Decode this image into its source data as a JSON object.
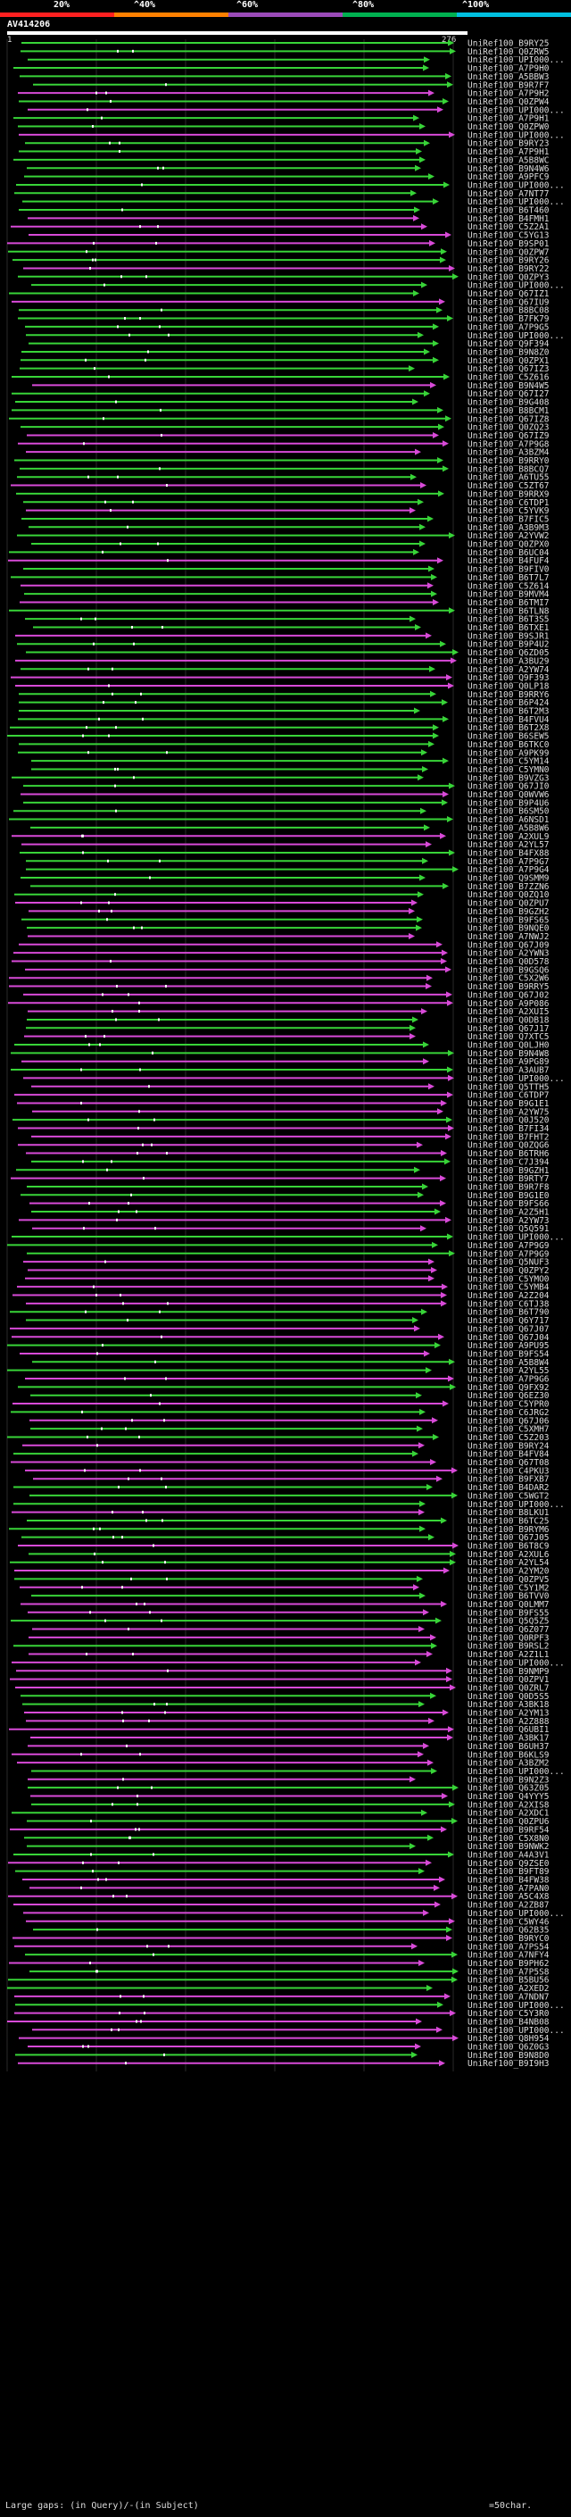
{
  "header": {
    "identity_labels": [
      "20%",
      "^40%",
      "^60%",
      "^80%",
      "^100%"
    ],
    "identity_colors": [
      "#ff2020",
      "#ff8000",
      "#9b4bb8",
      "#00b050",
      "#00c0e0"
    ]
  },
  "query": {
    "title": "AV414206",
    "start": "1",
    "end": "276"
  },
  "colors": {
    "green": "#38d438",
    "magenta": "#d84ad8",
    "background": "#000000",
    "grid": "#2a2a2a"
  },
  "hits": [
    "UniRef100_B9RY25",
    "UniRef100_Q0ZRW5",
    "UniRef100_UPI000...",
    "UniRef100_A7P9H0",
    "UniRef100_A5BBW3",
    "UniRef100_B9R7F7",
    "UniRef100_A7P9H2",
    "UniRef100_Q0ZPW4",
    "UniRef100_UPI000...",
    "UniRef100_A7P9H1",
    "UniRef100_Q0ZPW0",
    "UniRef100_UPI000...",
    "UniRef100_B9RY23",
    "UniRef100_A7P9H1",
    "UniRef100_A5B8WC",
    "UniRef100_B9N4W6",
    "UniRef100_A9PFC9",
    "UniRef100_UPI000...",
    "UniRef100_A7NT77",
    "UniRef100_UPI000...",
    "UniRef100_B6T460",
    "UniRef100_B4FMH1",
    "UniRef100_C5Z2A1",
    "UniRef100_C5YG13",
    "UniRef100_B9SP01",
    "UniRef100_Q0ZPW7",
    "UniRef100_B9RY26",
    "UniRef100_B9RY22",
    "UniRef100_Q0ZPY3",
    "UniRef100_UPI000...",
    "UniRef100_Q67IZ1",
    "UniRef100_Q67IU9",
    "UniRef100_B8BC08",
    "UniRef100_B7FK79",
    "UniRef100_A7P9G5",
    "UniRef100_UPI000...",
    "UniRef100_Q9F394",
    "UniRef100_B9N8Z0",
    "UniRef100_Q0ZPX1",
    "UniRef100_Q67IZ3",
    "UniRef100_C5Z616",
    "UniRef100_B9N4W5",
    "UniRef100_Q67I27",
    "UniRef100_B9G408",
    "UniRef100_B8BCM1",
    "UniRef100_Q67IZ8",
    "UniRef100_Q0ZQ23",
    "UniRef100_Q67IZ9",
    "UniRef100_A7P9G8",
    "UniRef100_A3BZM4",
    "UniRef100_B9RRY0",
    "UniRef100_B8BCQ7",
    "UniRef100_A6TU55",
    "UniRef100_C5ZT67",
    "UniRef100_B9RRX9",
    "UniRef100_C6TDP1",
    "UniRef100_C5YVK9",
    "UniRef100_B7FIC5",
    "UniRef100_A3B9M3",
    "UniRef100_A2YVW2",
    "UniRef100_Q0ZPX0",
    "UniRef100_B6UC04",
    "UniRef100_B4FUF4",
    "UniRef100_B9FIV0",
    "UniRef100_B6T7L7",
    "UniRef100_C5Z614",
    "UniRef100_B9MVM4",
    "UniRef100_B6TMI7",
    "UniRef100_B6TLN8",
    "UniRef100_B6T3S5",
    "UniRef100_B6TXE1",
    "UniRef100_B9SJR1",
    "UniRef100_B9P4U2",
    "UniRef100_Q6ZD05",
    "UniRef100_A3BU29",
    "UniRef100_A2YW74",
    "UniRef100_Q9F393",
    "UniRef100_Q0LP18",
    "UniRef100_B9RRY6",
    "UniRef100_B6P424",
    "UniRef100_B6T2M3",
    "UniRef100_B4FVU4",
    "UniRef100_B6T2X8",
    "UniRef100_B6SEW5",
    "UniRef100_B6TKC0",
    "UniRef100_A9PK99",
    "UniRef100_C5YM14",
    "UniRef100_C5YMN0",
    "UniRef100_B9VZG3",
    "UniRef100_Q67JI0",
    "UniRef100_Q0WVW6",
    "UniRef100_B9P4U6",
    "UniRef100_B6SM50",
    "UniRef100_A6NSD1",
    "UniRef100_A5B8W6",
    "UniRef100_A2XUL9",
    "UniRef100_A2YL57",
    "UniRef100_B4FX88",
    "UniRef100_A7P9G7",
    "UniRef100_A7P9G4",
    "UniRef100_Q9SMM9",
    "UniRef100_B7ZZN6",
    "UniRef100_Q0ZQ10",
    "UniRef100_Q0ZPU7",
    "UniRef100_B9GZH2",
    "UniRef100_B9FS65",
    "UniRef100_B9NQE0",
    "UniRef100_A7NWJ2",
    "UniRef100_Q67J09",
    "UniRef100_A2YWN3",
    "UniRef100_Q0D578",
    "UniRef100_B9GSQ6",
    "UniRef100_C5X2W6",
    "UniRef100_B9RRY5",
    "UniRef100_Q67J02",
    "UniRef100_A9P086",
    "UniRef100_A2XUI5",
    "UniRef100_Q0DB18",
    "UniRef100_Q67J17",
    "UniRef100_Q7XTC5",
    "UniRef100_Q0LJH0",
    "UniRef100_B9N4W8",
    "UniRef100_A9PG89",
    "UniRef100_A3AUB7",
    "UniRef100_UPI000...",
    "UniRef100_Q5TTH5",
    "UniRef100_C6TDP7",
    "UniRef100_B9G1E1",
    "UniRef100_A2YW75",
    "UniRef100_Q0J520",
    "UniRef100_B7FI34",
    "UniRef100_B7FHT2",
    "UniRef100_Q0ZQG6",
    "UniRef100_B6TRH6",
    "UniRef100_C7J394",
    "UniRef100_B9GZH1",
    "UniRef100_B9RTY7",
    "UniRef100_B9R7F8",
    "UniRef100_B9G1E0",
    "UniRef100_B9FS66",
    "UniRef100_A2Z5H1",
    "UniRef100_A2YW73",
    "UniRef100_Q5Q591",
    "UniRef100_UPI000...",
    "UniRef100_A7P9G9",
    "UniRef100_A7P9G9",
    "UniRef100_Q5NUF3",
    "UniRef100_Q0ZPY2",
    "UniRef100_C5YMO0",
    "UniRef100_C5YMB4",
    "UniRef100_A2Z204",
    "UniRef100_C6TJ38",
    "UniRef100_B6T790",
    "UniRef100_Q6Y717",
    "UniRef100_Q67J07",
    "UniRef100_Q67J04",
    "UniRef100_A9PU95",
    "UniRef100_B9FS54",
    "UniRef100_A5B8W4",
    "UniRef100_A2YL55",
    "UniRef100_A7P9G6",
    "UniRef100_Q9FX92",
    "UniRef100_Q6EZ30",
    "UniRef100_C5YPR0",
    "UniRef100_C6JRG2",
    "UniRef100_Q67J06",
    "UniRef100_C5XMH7",
    "UniRef100_C5Z203",
    "UniRef100_B9RY24",
    "UniRef100_B4FV84",
    "UniRef100_Q67T08",
    "UniRef100_C4PKU3",
    "UniRef100_B9FXB7",
    "UniRef100_B4DAR2",
    "UniRef100_C5WGT2",
    "UniRef100_UPI000...",
    "UniRef100_B8LKU1",
    "UniRef100_B6TC25",
    "UniRef100_B9RYM6",
    "UniRef100_Q67J05",
    "UniRef100_B6T8C9",
    "UniRef100_A2XUL6",
    "UniRef100_A2YL54",
    "UniRef100_A2YM20",
    "UniRef100_Q0ZPV5",
    "UniRef100_C5Y1M2",
    "UniRef100_B6TVV0",
    "UniRef100_Q0LMM7",
    "UniRef100_B9FS55",
    "UniRef100_Q5Q5Z5",
    "UniRef100_Q6Z077",
    "UniRef100_Q0RPF3",
    "UniRef100_B9RSL2",
    "UniRef100_A2Z1L1",
    "UniRef100_UPI000...",
    "UniRef100_B9NMP9",
    "UniRef100_Q0ZPV1",
    "UniRef100_Q0ZRL7",
    "UniRef100_Q0D5S5",
    "UniRef100_A3BK18",
    "UniRef100_A2YM13",
    "UniRef100_A2Z888",
    "UniRef100_Q6UBI1",
    "UniRef100_A3BK17",
    "UniRef100_B6UH37",
    "UniRef100_B6KLS9",
    "UniRef100_A3BZM2",
    "UniRef100_UPI000...",
    "UniRef100_B9N2Z3",
    "UniRef100_Q63Z05",
    "UniRef100_Q4YYY5",
    "UniRef100_A2XIS8",
    "UniRef100_A2XDC1",
    "UniRef100_Q0ZPU6",
    "UniRef100_B9RF54",
    "UniRef100_C5X8N0",
    "UniRef100_B9NWK2",
    "UniRef100_A4A3V1",
    "UniRef100_Q9ZSE0",
    "UniRef100_B9FT89",
    "UniRef100_B4FW38",
    "UniRef100_A7PAN0",
    "UniRef100_A5C4X8",
    "UniRef100_A2ZB87",
    "UniRef100_UPI000...",
    "UniRef100_C5WY46",
    "UniRef100_Q62B35",
    "UniRef100_B9RYC0",
    "UniRef100_A7PS54",
    "UniRef100_A7NFY4",
    "UniRef100_B9PH62",
    "UniRef100_A7P5S8",
    "UniRef100_B5BU56",
    "UniRef100_A2XED2",
    "UniRef100_A7NDN7",
    "UniRef100_UPI000...",
    "UniRef100_C5Y3R0",
    "UniRef100_B4NB08",
    "UniRef100_UPI000...",
    "UniRef100_Q8H954",
    "UniRef100_Q6Z0G3",
    "UniRef100_B9N8D0",
    "UniRef100_B9I9H3"
  ],
  "footer": {
    "legend_prefix": "Large gaps:",
    "legend_query": "(in Query)/",
    "legend_subject": "-(in Subject)",
    "scale_label": "=50char."
  }
}
